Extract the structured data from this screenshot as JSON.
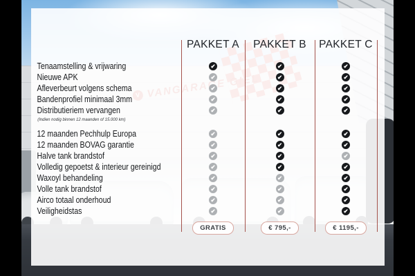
{
  "background": {
    "signage_logo_letter": "V",
    "signage_text": "VANGARAGE GIEL"
  },
  "table": {
    "headers": [
      "PAKKET A",
      "PAKKET B",
      "PAKKET C"
    ],
    "sections": [
      {
        "rows": [
          {
            "label": "Tenaamstelling & vrijwaring",
            "checks": [
              true,
              true,
              true
            ]
          },
          {
            "label": "Nieuwe APK",
            "checks": [
              false,
              true,
              true
            ]
          },
          {
            "label": "Afleverbeurt volgens schema",
            "checks": [
              false,
              true,
              true
            ]
          },
          {
            "label": "Bandenprofiel minimaal 3mm",
            "checks": [
              false,
              true,
              true
            ]
          },
          {
            "label": "Distributieriem vervangen",
            "checks": [
              false,
              true,
              true
            ],
            "note": "(Indien nodig binnen 12 maanden of 15.000 km)"
          }
        ]
      },
      {
        "rows": [
          {
            "label": "12 maanden Pechhulp Europa",
            "checks": [
              false,
              true,
              true
            ]
          },
          {
            "label": "12 maanden BOVAG garantie",
            "checks": [
              false,
              true,
              true
            ]
          },
          {
            "label": "Halve tank brandstof",
            "checks": [
              false,
              true,
              false
            ]
          },
          {
            "label": "Volledig gepoetst & interieur gereinigd",
            "checks": [
              false,
              true,
              true
            ]
          },
          {
            "label": "Waxoyl behandeling",
            "checks": [
              false,
              false,
              true
            ]
          },
          {
            "label": "Volle tank brandstof",
            "checks": [
              false,
              false,
              true
            ]
          },
          {
            "label": "Airco totaal onderhoud",
            "checks": [
              false,
              false,
              true
            ]
          },
          {
            "label": "Veiligheidstas",
            "checks": [
              false,
              false,
              true
            ]
          }
        ]
      }
    ],
    "prices": [
      "GRATIS",
      "€ 795,-",
      "€ 1195,-"
    ]
  },
  "icons": {
    "check": "✔"
  },
  "colors": {
    "divider": "#a4524c",
    "check_included": "#17191c",
    "check_excluded": "#aeb1b4",
    "pill_border": "#d8a79f",
    "panel_overlay": "rgba(255,255,255,0.9)",
    "signage_red": "#c0392f"
  }
}
